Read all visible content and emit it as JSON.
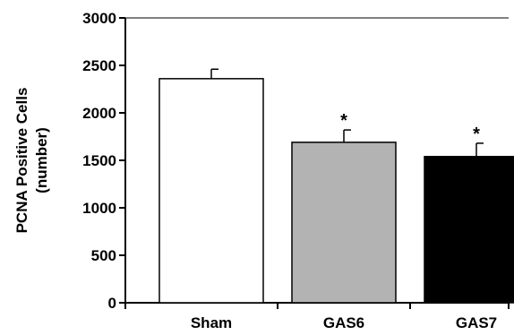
{
  "chart_data": {
    "type": "bar",
    "categories": [
      "Sham",
      "GAS6",
      "GAS7"
    ],
    "values": [
      2360,
      1690,
      1540
    ],
    "errors": [
      100,
      130,
      140
    ],
    "annotations": [
      "",
      "*",
      "*"
    ],
    "bar_colors": [
      "#ffffff",
      "#b3b3b3",
      "#000000"
    ],
    "ylabel_lines": [
      "PCNA Positive Cells",
      "(number)"
    ],
    "ylim": [
      0,
      3000
    ],
    "yticks": [
      0,
      500,
      1000,
      1500,
      2000,
      2500,
      3000
    ],
    "grid": false
  }
}
